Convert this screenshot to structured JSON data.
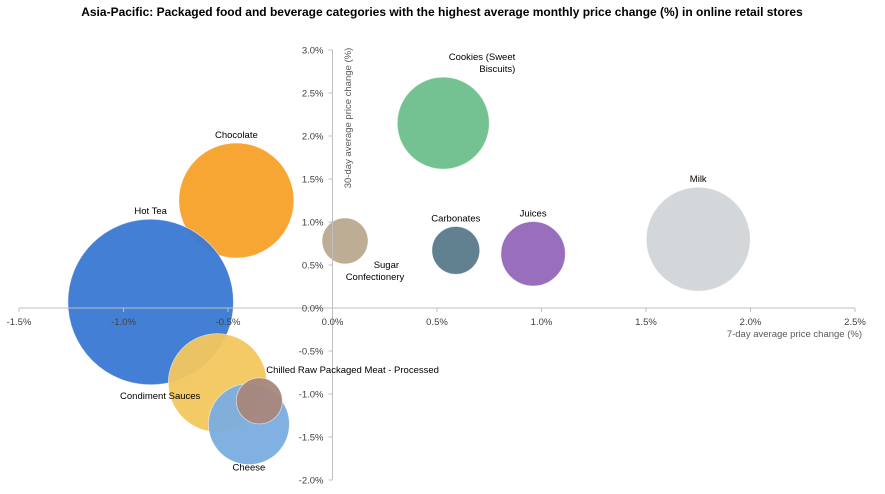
{
  "chart_data": {
    "type": "bubble",
    "title": "Asia-Pacific: Packaged food and beverage categories with the highest average monthly price change (%) in online retail stores",
    "xlabel": "7-day average price change (%)",
    "ylabel": "30-day average price change (%)",
    "xlim": [
      -1.5,
      2.5
    ],
    "ylim": [
      -2.0,
      3.0
    ],
    "x_ticks": [
      -1.5,
      -1.0,
      -0.5,
      0.0,
      0.5,
      1.0,
      1.5,
      2.0,
      2.5
    ],
    "x_tick_labels": [
      "-1.5%",
      "-1.0%",
      "-0.5%",
      "0.0%",
      "0.5%",
      "1.0%",
      "1.5%",
      "2.0%",
      "2.5%"
    ],
    "y_ticks": [
      3.0,
      2.5,
      2.0,
      1.5,
      1.0,
      0.5,
      0.0,
      -0.5,
      -1.0,
      -1.5,
      -2.0
    ],
    "y_tick_labels": [
      "3.0%",
      "2.5%",
      "2.0%",
      "1.5%",
      "1.0%",
      "0.5%",
      "0.0%",
      "-0.5%",
      "-1.0%",
      "-1.5%",
      "-2.0%"
    ],
    "grid": false,
    "legend": "none",
    "series": [
      {
        "name": "Cookies (Sweet Biscuits)",
        "label_lines": [
          "Cookies (Sweet",
          "Biscuits)"
        ],
        "x": 0.53,
        "y": 2.15,
        "size": 1.0,
        "color": "#6dbf8b",
        "label_pos": "top-right"
      },
      {
        "name": "Chocolate",
        "label_lines": [
          "Chocolate"
        ],
        "x": -0.46,
        "y": 1.25,
        "size": 1.25,
        "color": "#f7a028",
        "label_pos": "top"
      },
      {
        "name": "Sugar Confectionery",
        "label_lines": [
          "Sugar",
          "Confectionery"
        ],
        "x": 0.06,
        "y": 0.78,
        "size": 0.5,
        "color": "#b9a98e",
        "label_pos": "bottom-right"
      },
      {
        "name": "Carbonates",
        "label_lines": [
          "Carbonates"
        ],
        "x": 0.59,
        "y": 0.67,
        "size": 0.52,
        "color": "#5a7a8a",
        "label_pos": "top"
      },
      {
        "name": "Juices",
        "label_lines": [
          "Juices"
        ],
        "x": 0.96,
        "y": 0.63,
        "size": 0.7,
        "color": "#9466b8",
        "label_pos": "top"
      },
      {
        "name": "Milk",
        "label_lines": [
          "Milk"
        ],
        "x": 1.75,
        "y": 0.8,
        "size": 1.13,
        "color": "#d2d5d8",
        "label_pos": "top"
      },
      {
        "name": "Hot Tea",
        "label_lines": [
          "Hot Tea"
        ],
        "x": -0.87,
        "y": 0.07,
        "size": 1.8,
        "color": "#3a78d4",
        "label_pos": "top"
      },
      {
        "name": "Condiment Sauces",
        "label_lines": [
          "Condiment Sauces"
        ],
        "x": -0.55,
        "y": -0.87,
        "size": 1.07,
        "color": "#f2c75e",
        "label_pos": "left"
      },
      {
        "name": "Cheese",
        "label_lines": [
          "Cheese"
        ],
        "x": -0.4,
        "y": -1.35,
        "size": 0.88,
        "color": "#7aaddf",
        "label_pos": "bottom"
      },
      {
        "name": "Chilled Raw Packaged Meat - Processed",
        "label_lines": [
          "Chilled Raw Packaged Meat  - Processed"
        ],
        "x": -0.35,
        "y": -1.08,
        "size": 0.5,
        "color": "#a6877c",
        "label_pos": "top-right"
      }
    ]
  }
}
